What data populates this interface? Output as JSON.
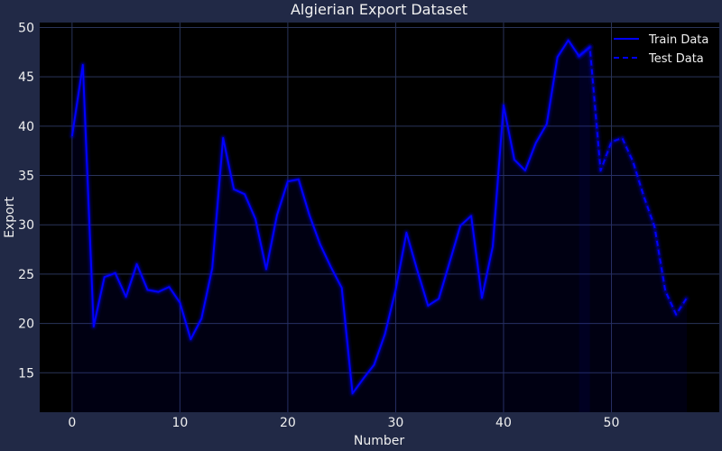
{
  "chart_data": {
    "type": "line",
    "title": "Algierian Export Dataset",
    "xlabel": "Number",
    "ylabel": "Export",
    "xlim": [
      -3,
      60
    ],
    "ylim": [
      11,
      50.5
    ],
    "xticks": [
      0,
      10,
      20,
      30,
      40,
      50
    ],
    "yticks": [
      15,
      20,
      25,
      30,
      35,
      40,
      45,
      50
    ],
    "grid": true,
    "legend": "top-right",
    "series": [
      {
        "name": "Train Data",
        "style": "solid",
        "color": "#0000ff",
        "x": [
          0,
          1,
          2,
          3,
          4,
          5,
          6,
          7,
          8,
          9,
          10,
          11,
          12,
          13,
          14,
          15,
          16,
          17,
          18,
          19,
          20,
          21,
          22,
          23,
          24,
          25,
          26,
          27,
          28,
          29,
          30,
          31,
          32,
          33,
          34,
          35,
          36,
          37,
          38,
          39,
          40,
          41,
          42,
          43,
          44,
          45,
          46,
          47,
          48
        ],
        "y": [
          39.0,
          46.2,
          19.7,
          24.7,
          25.1,
          22.7,
          26.0,
          23.4,
          23.2,
          23.7,
          22.1,
          18.4,
          20.5,
          25.6,
          38.8,
          33.6,
          33.1,
          30.6,
          25.5,
          31.0,
          34.4,
          34.6,
          31.0,
          28.0,
          25.7,
          23.6,
          12.9,
          14.4,
          15.8,
          18.9,
          23.4,
          29.2,
          25.4,
          21.8,
          22.5,
          26.2,
          29.9,
          30.9,
          22.6,
          27.8,
          42.1,
          36.6,
          35.5,
          38.3,
          40.2,
          47.0,
          48.7,
          47.1,
          48.0
        ]
      },
      {
        "name": "Test Data",
        "style": "dashed",
        "color": "#0000ff",
        "x": [
          47,
          48,
          49,
          50,
          51,
          52,
          53,
          54,
          55,
          56,
          57
        ],
        "y": [
          47.1,
          48.0,
          35.5,
          38.4,
          38.8,
          36.4,
          32.9,
          29.8,
          23.3,
          20.9,
          22.6
        ]
      }
    ]
  }
}
